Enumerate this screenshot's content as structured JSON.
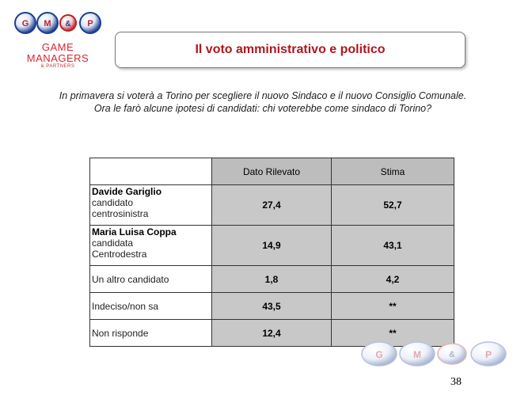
{
  "logo": {
    "balls": [
      "G",
      "M",
      "&",
      "P"
    ],
    "line1": "GAME",
    "line2": "MANAGERS",
    "line3": "& PARTNERS"
  },
  "title": "Il voto amministrativo e politico",
  "question": "In primavera si voterà a Torino per scegliere il nuovo Sindaco e il nuovo Consiglio Comunale. Ora le farò alcune ipotesi di candidati: chi voterebbe come sindaco di Torino?",
  "table": {
    "headers": [
      "Dato Rilevato",
      "Stima"
    ],
    "rows": [
      {
        "name": "Davide Gariglio",
        "desc1": "candidato",
        "desc2": "centrosinistra",
        "rilevato": "27,4",
        "stima": "52,7"
      },
      {
        "name": "Maria Luisa Coppa",
        "desc1": "candidata",
        "desc2": "Centrodestra",
        "rilevato": "14,9",
        "stima": "43,1"
      },
      {
        "label": "Un altro candidato",
        "rilevato": "1,8",
        "stima": "4,2"
      },
      {
        "label": "Indeciso/non sa",
        "rilevato": "43,5",
        "stima": "**"
      },
      {
        "label": "Non risponde",
        "rilevato": "12,4",
        "stima": "**"
      }
    ]
  },
  "footer": {
    "balls": [
      "G",
      "M",
      "&",
      "P"
    ],
    "page_number": "38"
  },
  "colors": {
    "brand_red": "#d8262f",
    "title_red": "#b0171d",
    "ball_blue": "#1c3f94",
    "cell_gray": "#c8c8c8"
  }
}
